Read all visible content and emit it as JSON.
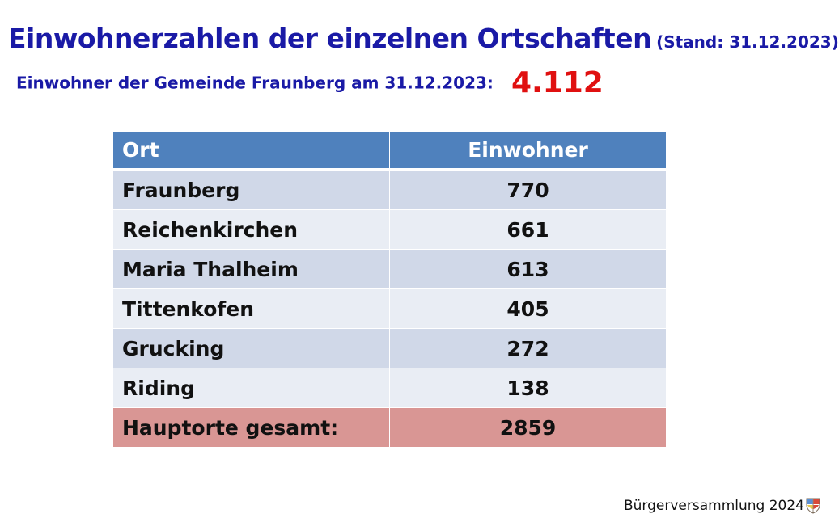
{
  "heading": {
    "title": "Einwohnerzahlen der einzelnen Ortschaften",
    "stand": "(Stand: 31.12.2023)"
  },
  "summary": {
    "label": "Einwohner der Gemeinde Fraunberg am 31.12.2023:",
    "total": "4.112"
  },
  "table": {
    "headers": {
      "ort": "Ort",
      "einwohner": "Einwohner"
    },
    "rows": [
      {
        "ort": "Fraunberg",
        "einwohner": "770"
      },
      {
        "ort": "Reichenkirchen",
        "einwohner": "661"
      },
      {
        "ort": "Maria Thalheim",
        "einwohner": "613"
      },
      {
        "ort": "Tittenkofen",
        "einwohner": "405"
      },
      {
        "ort": "Grucking",
        "einwohner": "272"
      },
      {
        "ort": "Riding",
        "einwohner": "138"
      }
    ],
    "total_row": {
      "ort": "Hauptorte gesamt:",
      "einwohner": "2859"
    }
  },
  "footer": {
    "text": "Bürgerversammlung 2024",
    "icon": "coat-of-arms-icon"
  },
  "colors": {
    "title_blue": "#1a1aa6",
    "total_red": "#e01010",
    "header_blue": "#4f81bd",
    "row_dark": "#d0d8e8",
    "row_light": "#e9edf4",
    "sum_row": "#d99694"
  }
}
